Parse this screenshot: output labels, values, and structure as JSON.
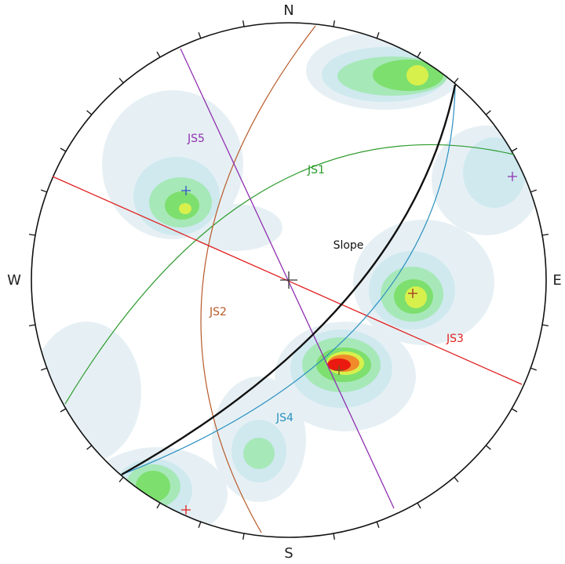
{
  "compass": {
    "north": "N",
    "south": "S",
    "east": "E",
    "west": "W"
  },
  "planes": {
    "js1": "JS1",
    "js2": "JS2",
    "js3": "JS3",
    "js4": "JS4",
    "js5": "JS5",
    "slope": "Slope"
  }
}
